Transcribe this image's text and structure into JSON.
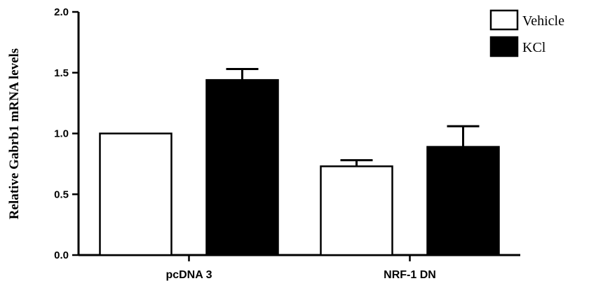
{
  "chart_data": {
    "type": "bar",
    "title": "",
    "xlabel": "",
    "ylabel": "Relative Gabrb1 mRNA levels",
    "ylim": [
      0,
      2.0
    ],
    "yticks": [
      "0.0",
      "0.5",
      "1.0",
      "1.5",
      "2.0"
    ],
    "categories": [
      "pcDNA 3",
      "NRF-1 DN"
    ],
    "series": [
      {
        "name": "Vehicle",
        "values": [
          1.0,
          0.73
        ],
        "errors": [
          0.0,
          0.05
        ],
        "fill": "#ffffff"
      },
      {
        "name": "KCl",
        "values": [
          1.44,
          0.89
        ],
        "errors": [
          0.09,
          0.17
        ],
        "fill": "#000000"
      }
    ],
    "grid": false,
    "legend": "top-right"
  }
}
